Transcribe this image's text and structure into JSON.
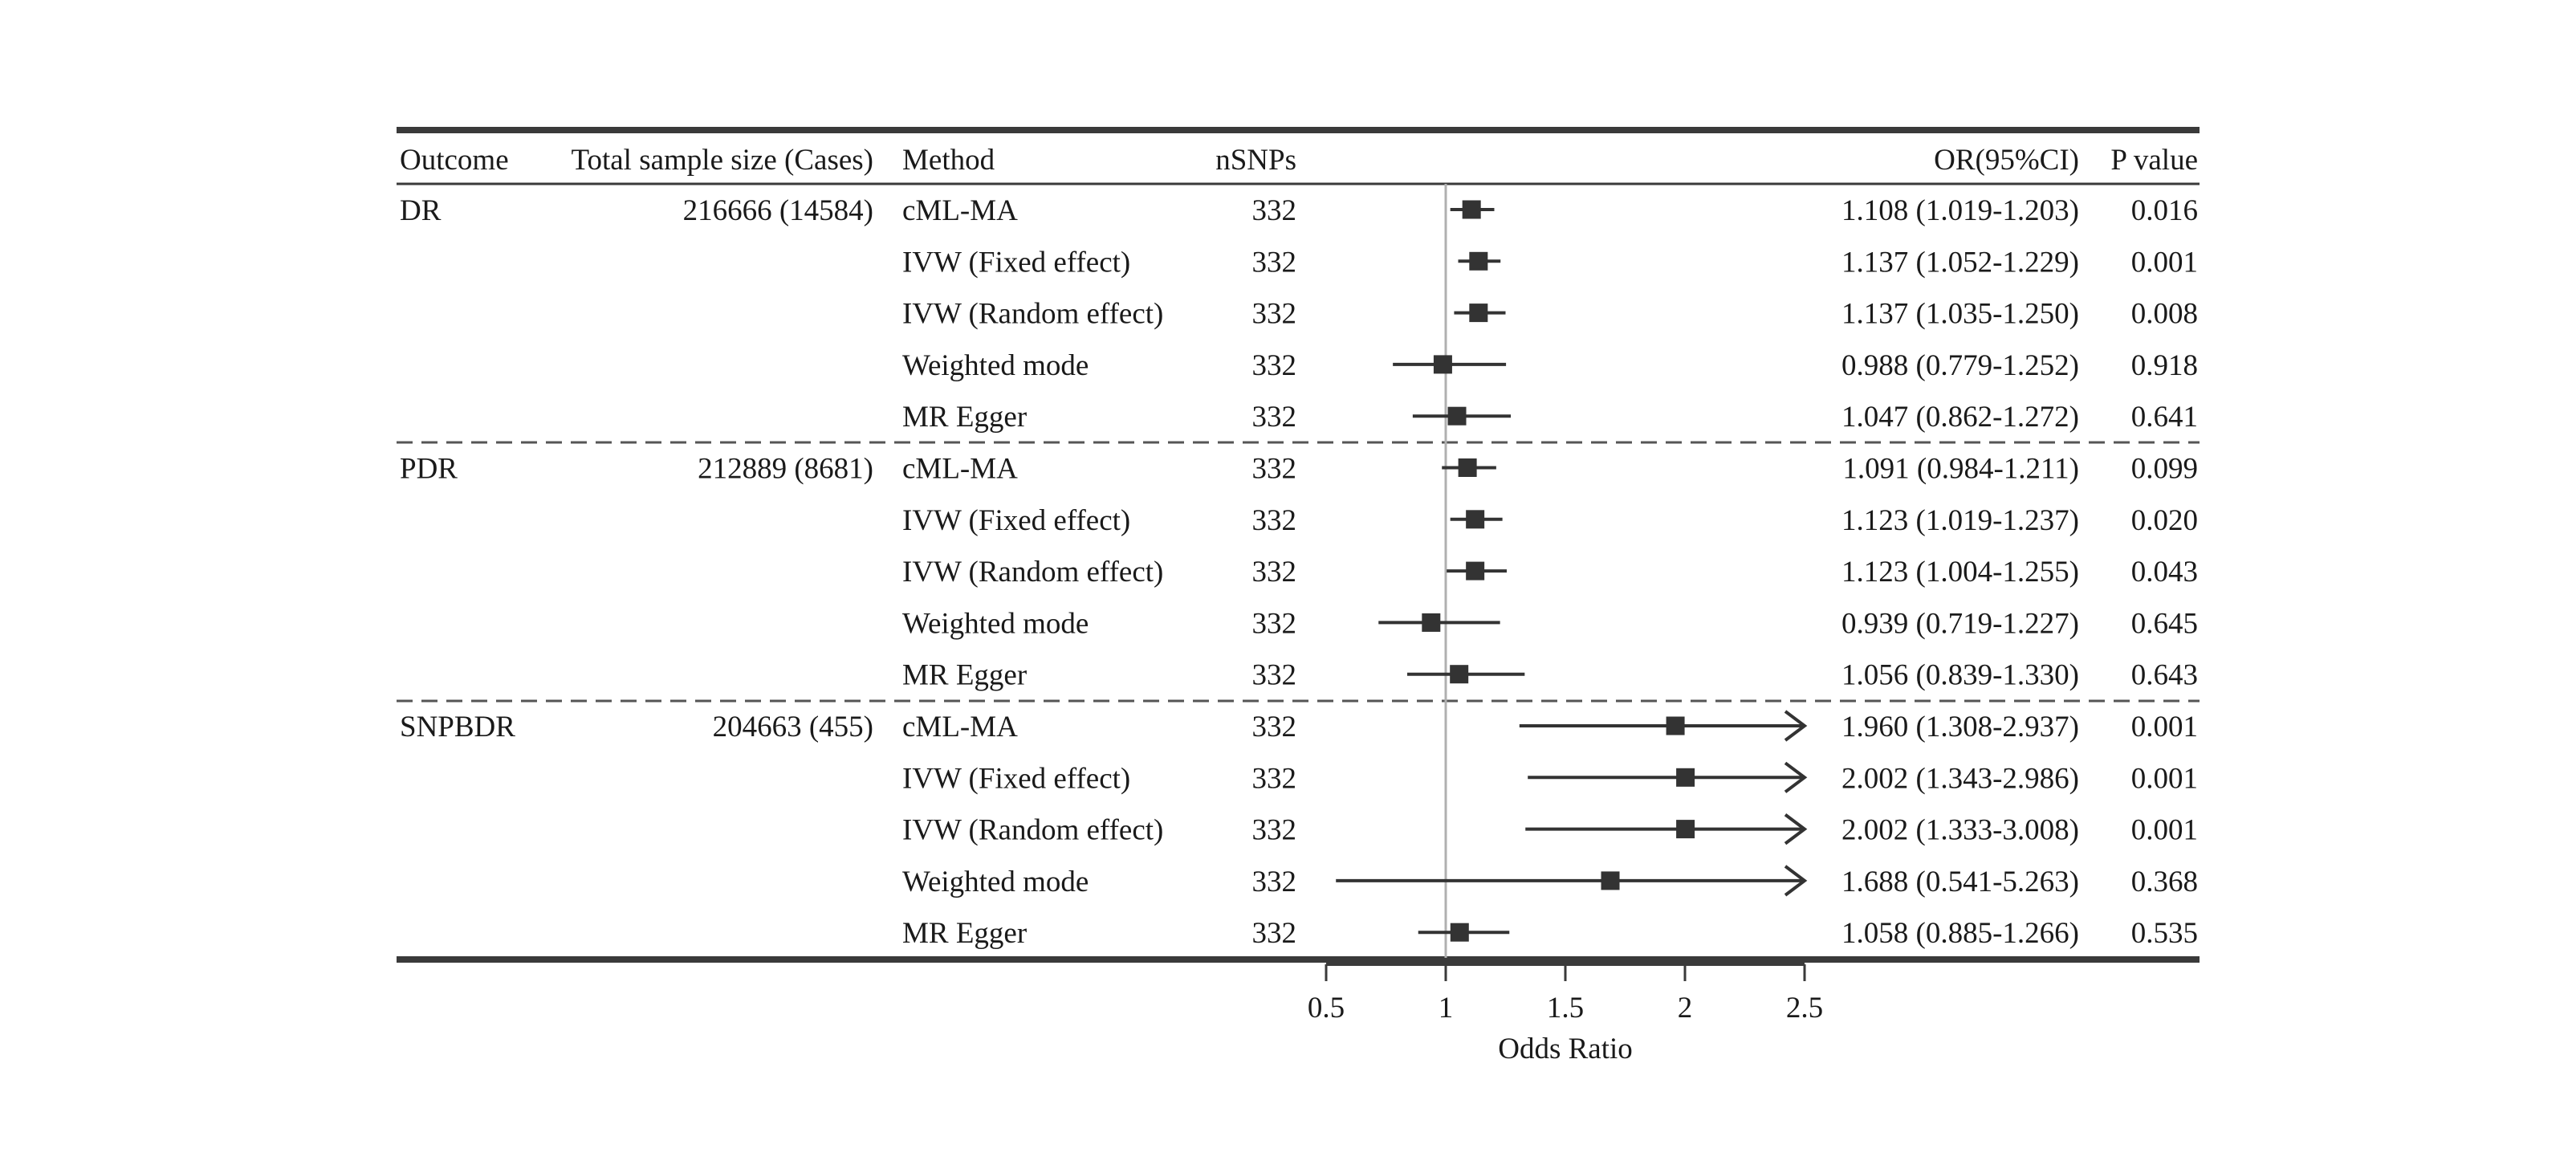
{
  "columns": {
    "outcome": "Outcome",
    "sample": "Total sample size (Cases)",
    "method": "Method",
    "nsnps": "nSNPs",
    "or": "OR(95%CI)",
    "p": "P value"
  },
  "groups": [
    {
      "outcome": "DR",
      "sample": "216666 (14584)",
      "rows": [
        {
          "method": "cML-MA",
          "nsnps": "332",
          "or_text": "1.108 (1.019-1.203)",
          "p": "0.016"
        },
        {
          "method": "IVW (Fixed effect)",
          "nsnps": "332",
          "or_text": "1.137 (1.052-1.229)",
          "p": "0.001"
        },
        {
          "method": "IVW (Random effect)",
          "nsnps": "332",
          "or_text": "1.137 (1.035-1.250)",
          "p": "0.008"
        },
        {
          "method": "Weighted mode",
          "nsnps": "332",
          "or_text": "0.988 (0.779-1.252)",
          "p": "0.918"
        },
        {
          "method": "MR Egger",
          "nsnps": "332",
          "or_text": "1.047 (0.862-1.272)",
          "p": "0.641"
        }
      ]
    },
    {
      "outcome": "PDR",
      "sample": "212889 (8681)",
      "rows": [
        {
          "method": "cML-MA",
          "nsnps": "332",
          "or_text": "1.091 (0.984-1.211)",
          "p": "0.099"
        },
        {
          "method": "IVW (Fixed effect)",
          "nsnps": "332",
          "or_text": "1.123 (1.019-1.237)",
          "p": "0.020"
        },
        {
          "method": "IVW (Random effect)",
          "nsnps": "332",
          "or_text": "1.123 (1.004-1.255)",
          "p": "0.043"
        },
        {
          "method": "Weighted mode",
          "nsnps": "332",
          "or_text": "0.939 (0.719-1.227)",
          "p": "0.645"
        },
        {
          "method": "MR Egger",
          "nsnps": "332",
          "or_text": "1.056 (0.839-1.330)",
          "p": "0.643"
        }
      ]
    },
    {
      "outcome": "SNPBDR",
      "sample": "204663 (455)",
      "rows": [
        {
          "method": "cML-MA",
          "nsnps": "332",
          "or_text": "1.960 (1.308-2.937)",
          "p": "0.001"
        },
        {
          "method": "IVW (Fixed effect)",
          "nsnps": "332",
          "or_text": "2.002 (1.343-2.986)",
          "p": "0.001"
        },
        {
          "method": "IVW (Random effect)",
          "nsnps": "332",
          "or_text": "2.002 (1.333-3.008)",
          "p": "0.001"
        },
        {
          "method": "Weighted mode",
          "nsnps": "332",
          "or_text": "1.688 (0.541-5.263)",
          "p": "0.368"
        },
        {
          "method": "MR Egger",
          "nsnps": "332",
          "or_text": "1.058 (0.885-1.266)",
          "p": "0.535"
        }
      ]
    }
  ],
  "chart_data": {
    "type": "scatter",
    "xlabel": "Odds Ratio",
    "xlim": [
      0.5,
      2.5
    ],
    "xticks": [
      "0.5",
      "1",
      "1.5",
      "2",
      "2.5"
    ],
    "reference_line": 1,
    "series": [
      {
        "values": [
          {
            "or": 1.108,
            "lower": 1.019,
            "upper": 1.203
          },
          {
            "or": 1.137,
            "lower": 1.052,
            "upper": 1.229
          },
          {
            "or": 1.137,
            "lower": 1.035,
            "upper": 1.25
          },
          {
            "or": 0.988,
            "lower": 0.779,
            "upper": 1.252
          },
          {
            "or": 1.047,
            "lower": 0.862,
            "upper": 1.272
          },
          {
            "or": 1.091,
            "lower": 0.984,
            "upper": 1.211
          },
          {
            "or": 1.123,
            "lower": 1.019,
            "upper": 1.237
          },
          {
            "or": 1.123,
            "lower": 1.004,
            "upper": 1.255
          },
          {
            "or": 0.939,
            "lower": 0.719,
            "upper": 1.227
          },
          {
            "or": 1.056,
            "lower": 0.839,
            "upper": 1.33
          },
          {
            "or": 1.96,
            "lower": 1.308,
            "upper": 2.937
          },
          {
            "or": 2.002,
            "lower": 1.343,
            "upper": 2.986
          },
          {
            "or": 2.002,
            "lower": 1.333,
            "upper": 3.008
          },
          {
            "or": 1.688,
            "lower": 0.541,
            "upper": 5.263
          },
          {
            "or": 1.058,
            "lower": 0.885,
            "upper": 1.266
          }
        ]
      }
    ],
    "colors": {
      "mark": "#333333",
      "reference": "#b0b0b0",
      "rule": "#3a3a3a"
    }
  }
}
